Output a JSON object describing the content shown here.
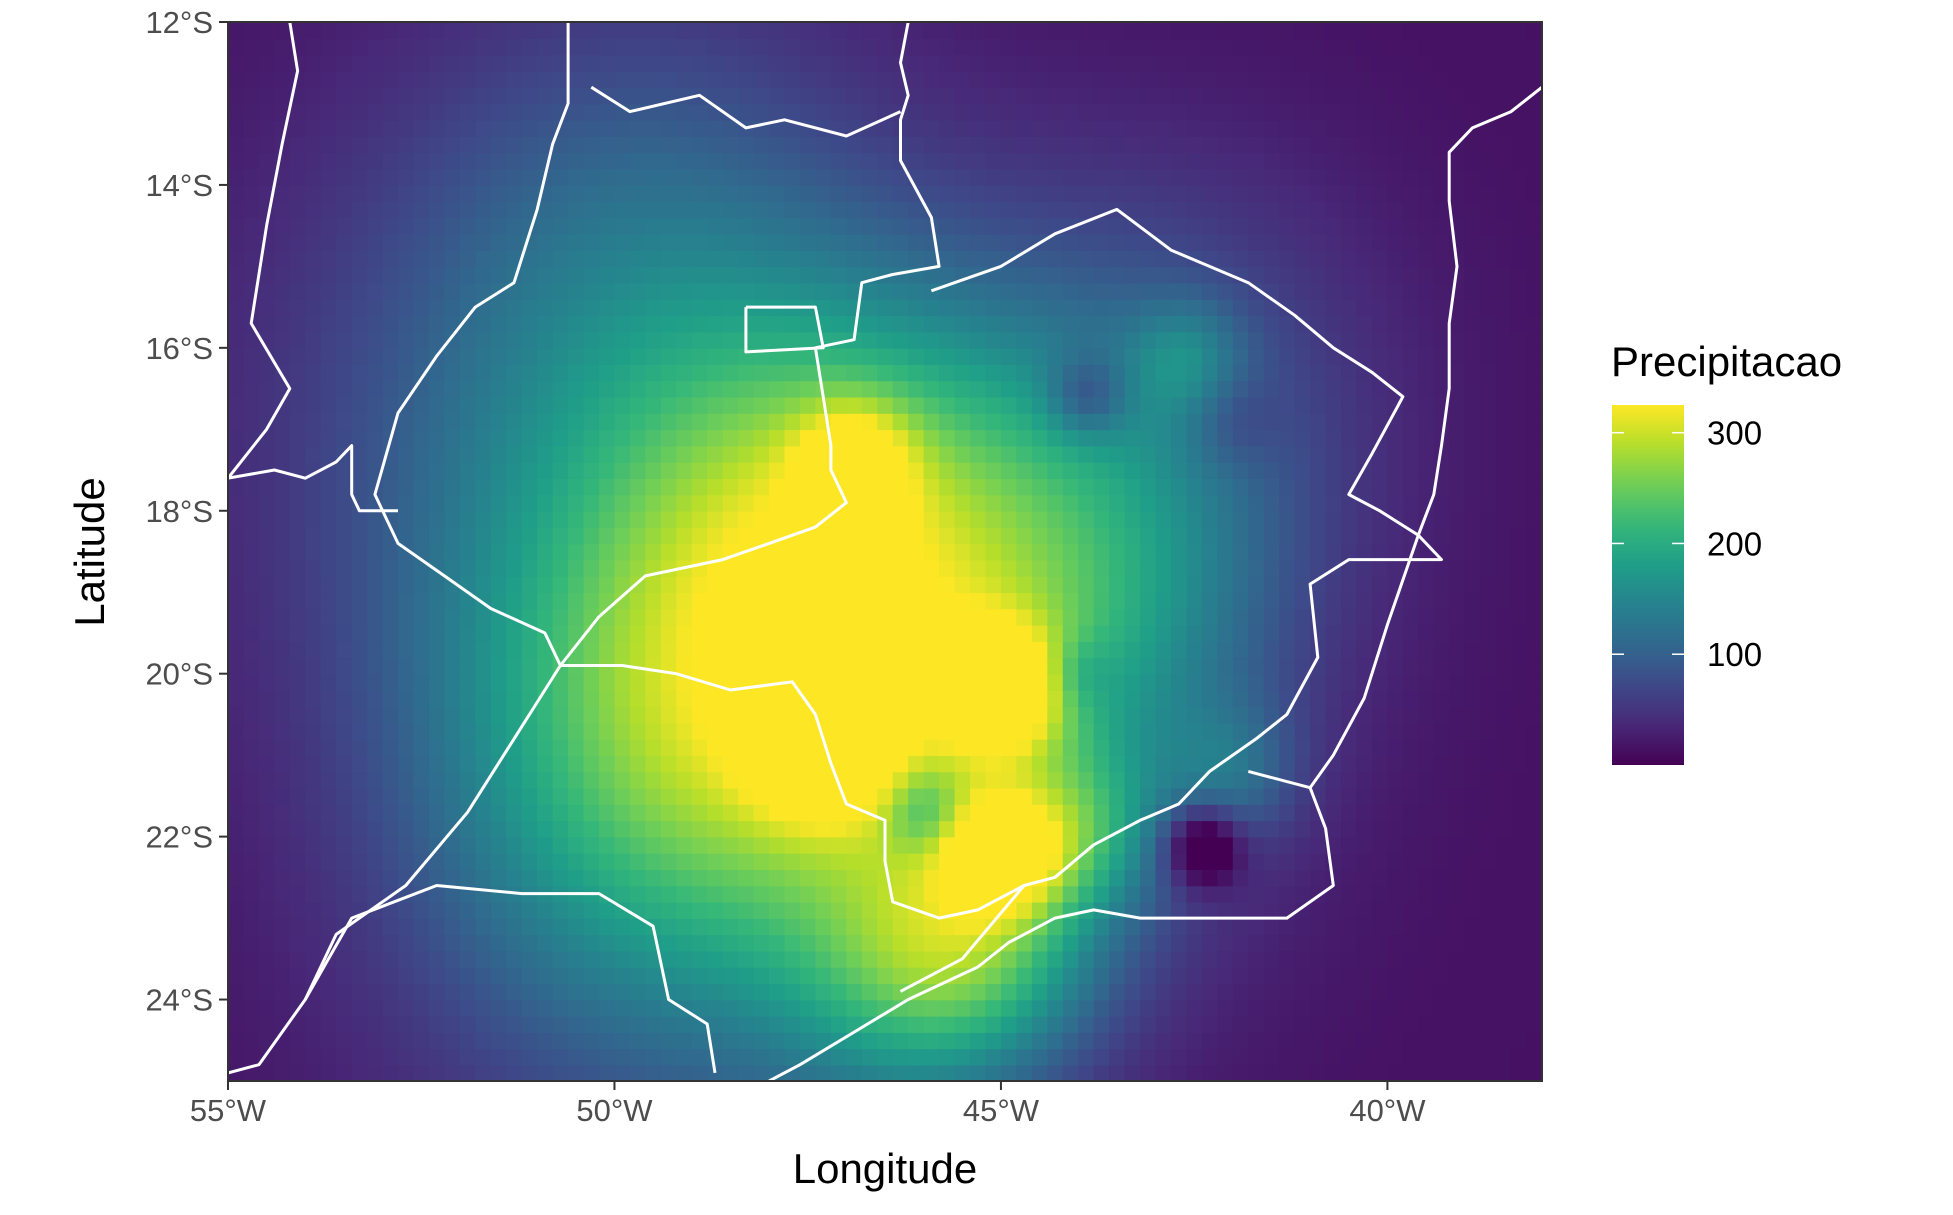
{
  "chart_data": {
    "type": "heatmap",
    "title": "",
    "xlabel": "Longitude",
    "ylabel": "Latitude",
    "x_range": [
      -55,
      -38
    ],
    "y_range": [
      -25,
      -12
    ],
    "x_ticks": [
      {
        "value": -55,
        "label": "55°W"
      },
      {
        "value": -50,
        "label": "50°W"
      },
      {
        "value": -45,
        "label": "45°W"
      },
      {
        "value": -40,
        "label": "40°W"
      }
    ],
    "y_ticks": [
      {
        "value": -12,
        "label": "12°S"
      },
      {
        "value": -14,
        "label": "14°S"
      },
      {
        "value": -16,
        "label": "16°S"
      },
      {
        "value": -18,
        "label": "18°S"
      },
      {
        "value": -20,
        "label": "20°S"
      },
      {
        "value": -22,
        "label": "22°S"
      },
      {
        "value": -24,
        "label": "24°S"
      }
    ],
    "legend": {
      "title": "Precipitacao",
      "placement": "right",
      "min": 0,
      "max": 325,
      "ticks": [
        {
          "value": 100,
          "label": "100"
        },
        {
          "value": 200,
          "label": "200"
        },
        {
          "value": 300,
          "label": "300"
        }
      ],
      "colormap": "viridis"
    },
    "color_stops": [
      "#440154",
      "#482878",
      "#3e4989",
      "#31688e",
      "#26828e",
      "#1f9e89",
      "#35b779",
      "#6ece58",
      "#b5de2b",
      "#fde725"
    ],
    "boundary_color": "#ffffff",
    "field": {
      "base": 15,
      "hotspots": [
        {
          "lon": -45.0,
          "lat": -20.2,
          "value": 180,
          "sigma": 0.55
        },
        {
          "lon": -47.3,
          "lat": -20.8,
          "value": 175,
          "sigma": 0.6
        },
        {
          "lon": -45.0,
          "lat": -22.2,
          "value": 160,
          "sigma": 0.5
        },
        {
          "lon": -44.0,
          "lat": -21.9,
          "value": 90,
          "sigma": 0.7
        },
        {
          "lon": -46.5,
          "lat": -20.0,
          "value": 200,
          "sigma": 2.6
        },
        {
          "lon": -46.9,
          "lat": -17.4,
          "value": 110,
          "sigma": 0.5
        },
        {
          "lon": -47.0,
          "lat": -17.8,
          "value": 90,
          "sigma": 1.8
        },
        {
          "lon": -49.5,
          "lat": -20.8,
          "value": 110,
          "sigma": 2.2
        },
        {
          "lon": -45.2,
          "lat": -23.3,
          "value": 110,
          "sigma": 1.1
        },
        {
          "lon": -46.2,
          "lat": -23.8,
          "value": 80,
          "sigma": 1.2
        },
        {
          "lon": -49.5,
          "lat": -23.5,
          "value": 50,
          "sigma": 2.6
        },
        {
          "lon": -50.5,
          "lat": -17.0,
          "value": 80,
          "sigma": 2.8
        },
        {
          "lon": -49.5,
          "lat": -14.5,
          "value": 50,
          "sigma": 2.2
        },
        {
          "lon": -43.0,
          "lat": -16.5,
          "value": 60,
          "sigma": 2.0
        },
        {
          "lon": -42.6,
          "lat": -16.1,
          "value": 60,
          "sigma": 0.5
        },
        {
          "lon": -42.0,
          "lat": -21.2,
          "value": 60,
          "sigma": 0.6
        },
        {
          "lon": -43.5,
          "lat": -19.0,
          "value": 60,
          "sigma": 1.6
        }
      ],
      "coldspots": [
        {
          "lon": -43.9,
          "lat": -16.6,
          "value": 70,
          "sigma": 0.35
        },
        {
          "lon": -42.4,
          "lat": -22.1,
          "value": 120,
          "sigma": 0.35
        },
        {
          "lon": -46.0,
          "lat": -21.7,
          "value": 60,
          "sigma": 0.35
        },
        {
          "lon": -44.0,
          "lat": -20.0,
          "value": 40,
          "sigma": 0.3
        },
        {
          "lon": -42.0,
          "lat": -16.9,
          "value": 30,
          "sigma": 0.4
        }
      ]
    },
    "borders": [
      {
        "name": "border-1",
        "points": [
          [
            -54.2,
            -12
          ],
          [
            -54.1,
            -12.6
          ],
          [
            -54.3,
            -13.5
          ],
          [
            -54.5,
            -14.5
          ],
          [
            -54.7,
            -15.7
          ],
          [
            -54.2,
            -16.5
          ],
          [
            -54.5,
            -17.0
          ],
          [
            -55,
            -17.6
          ]
        ]
      },
      {
        "name": "border-2",
        "points": [
          [
            -55,
            -17.6
          ],
          [
            -54.4,
            -17.5
          ],
          [
            -54.0,
            -17.6
          ],
          [
            -53.6,
            -17.4
          ],
          [
            -53.4,
            -17.2
          ],
          [
            -53.4,
            -17.8
          ],
          [
            -53.3,
            -18.0
          ],
          [
            -52.8,
            -18.0
          ]
        ]
      },
      {
        "name": "border-3",
        "points": [
          [
            -50.6,
            -12
          ],
          [
            -50.6,
            -13.0
          ],
          [
            -50.8,
            -13.5
          ],
          [
            -51.0,
            -14.3
          ],
          [
            -51.3,
            -15.2
          ],
          [
            -51.8,
            -15.5
          ],
          [
            -52.3,
            -16.1
          ],
          [
            -52.8,
            -16.8
          ],
          [
            -53.1,
            -17.8
          ],
          [
            -52.8,
            -18.4
          ],
          [
            -52.2,
            -18.8
          ],
          [
            -51.6,
            -19.2
          ],
          [
            -50.9,
            -19.5
          ],
          [
            -50.7,
            -19.9
          ],
          [
            -50.9,
            -20.2
          ],
          [
            -51.3,
            -20.8
          ],
          [
            -51.9,
            -21.7
          ],
          [
            -52.7,
            -22.6
          ],
          [
            -53.6,
            -23.2
          ],
          [
            -54.0,
            -24.0
          ],
          [
            -54.6,
            -24.8
          ],
          [
            -55,
            -24.9
          ]
        ]
      },
      {
        "name": "border-4",
        "points": [
          [
            -50.7,
            -19.9
          ],
          [
            -50.2,
            -19.3
          ],
          [
            -49.6,
            -18.8
          ],
          [
            -48.6,
            -18.6
          ],
          [
            -48.0,
            -18.4
          ],
          [
            -47.4,
            -18.2
          ],
          [
            -47.0,
            -17.9
          ],
          [
            -47.2,
            -17.5
          ],
          [
            -47.2,
            -17.2
          ],
          [
            -47.3,
            -16.6
          ],
          [
            -47.4,
            -16.0
          ],
          [
            -46.9,
            -15.9
          ],
          [
            -46.8,
            -15.2
          ],
          [
            -46.4,
            -15.1
          ],
          [
            -45.8,
            -15.0
          ],
          [
            -45.9,
            -14.4
          ],
          [
            -46.3,
            -13.7
          ],
          [
            -46.3,
            -13.2
          ],
          [
            -46.2,
            -12.9
          ],
          [
            -46.3,
            -12.5
          ],
          [
            -46.2,
            -12
          ]
        ]
      },
      {
        "name": "border-5",
        "points": [
          [
            -50.3,
            -12.8
          ],
          [
            -49.8,
            -13.1
          ],
          [
            -48.9,
            -12.9
          ],
          [
            -48.3,
            -13.3
          ],
          [
            -47.8,
            -13.2
          ],
          [
            -47.0,
            -13.4
          ],
          [
            -46.3,
            -13.1
          ]
        ]
      },
      {
        "name": "border-6",
        "points": [
          [
            -48.3,
            -15.5
          ],
          [
            -47.4,
            -15.5
          ],
          [
            -47.3,
            -16.0
          ],
          [
            -48.3,
            -16.05
          ],
          [
            -48.3,
            -15.5
          ]
        ]
      },
      {
        "name": "border-7",
        "points": [
          [
            -45.9,
            -15.3
          ],
          [
            -45.0,
            -15.0
          ],
          [
            -44.3,
            -14.6
          ],
          [
            -43.5,
            -14.3
          ],
          [
            -42.8,
            -14.8
          ],
          [
            -41.8,
            -15.2
          ],
          [
            -41.2,
            -15.6
          ],
          [
            -40.7,
            -16.0
          ],
          [
            -40.2,
            -16.3
          ],
          [
            -39.8,
            -16.6
          ],
          [
            -40.2,
            -17.3
          ],
          [
            -40.5,
            -17.8
          ],
          [
            -40.1,
            -18.0
          ],
          [
            -39.6,
            -18.3
          ],
          [
            -39.3,
            -18.6
          ],
          [
            -40.5,
            -18.6
          ],
          [
            -41.0,
            -18.9
          ],
          [
            -40.9,
            -19.8
          ],
          [
            -41.3,
            -20.5
          ],
          [
            -41.7,
            -20.8
          ],
          [
            -42.3,
            -21.2
          ],
          [
            -42.7,
            -21.6
          ],
          [
            -43.2,
            -21.8
          ],
          [
            -43.8,
            -22.1
          ],
          [
            -44.3,
            -22.5
          ],
          [
            -44.7,
            -22.6
          ],
          [
            -45.3,
            -22.9
          ],
          [
            -45.8,
            -23.0
          ],
          [
            -46.4,
            -22.8
          ],
          [
            -46.5,
            -22.3
          ],
          [
            -46.5,
            -21.8
          ],
          [
            -47.0,
            -21.6
          ],
          [
            -47.2,
            -21.1
          ],
          [
            -47.4,
            -20.5
          ],
          [
            -47.7,
            -20.1
          ],
          [
            -48.5,
            -20.2
          ],
          [
            -49.2,
            -20.0
          ],
          [
            -49.9,
            -19.9
          ],
          [
            -50.7,
            -19.9
          ]
        ]
      },
      {
        "name": "border-8",
        "points": [
          [
            -41.8,
            -21.2
          ],
          [
            -41.0,
            -21.4
          ],
          [
            -40.8,
            -21.9
          ],
          [
            -40.7,
            -22.6
          ],
          [
            -41.3,
            -23.0
          ],
          [
            -42.0,
            -23.0
          ],
          [
            -42.6,
            -23.0
          ],
          [
            -43.2,
            -23.0
          ],
          [
            -43.8,
            -22.9
          ],
          [
            -44.3,
            -23.0
          ],
          [
            -44.9,
            -23.3
          ],
          [
            -45.3,
            -23.6
          ],
          [
            -46.2,
            -24.0
          ],
          [
            -46.9,
            -24.4
          ],
          [
            -47.6,
            -24.8
          ],
          [
            -48.0,
            -25
          ]
        ]
      },
      {
        "name": "border-9",
        "points": [
          [
            -44.7,
            -22.6
          ],
          [
            -45.5,
            -23.5
          ],
          [
            -46.3,
            -23.9
          ]
        ]
      },
      {
        "name": "border-10",
        "points": [
          [
            -54.0,
            -24.0
          ],
          [
            -53.4,
            -23.0
          ],
          [
            -52.3,
            -22.6
          ],
          [
            -51.2,
            -22.7
          ],
          [
            -50.2,
            -22.7
          ],
          [
            -49.5,
            -23.1
          ],
          [
            -49.3,
            -24.0
          ],
          [
            -48.8,
            -24.3
          ],
          [
            -48.7,
            -24.9
          ]
        ]
      },
      {
        "name": "border-11",
        "points": [
          [
            -38.0,
            -12.8
          ],
          [
            -38.4,
            -13.1
          ],
          [
            -38.9,
            -13.3
          ],
          [
            -39.2,
            -13.6
          ],
          [
            -39.2,
            -14.2
          ],
          [
            -39.1,
            -15.0
          ],
          [
            -39.2,
            -15.7
          ],
          [
            -39.2,
            -16.5
          ],
          [
            -39.3,
            -17.2
          ],
          [
            -39.4,
            -17.8
          ],
          [
            -39.6,
            -18.3
          ],
          [
            -40.0,
            -19.4
          ],
          [
            -40.3,
            -20.3
          ],
          [
            -40.7,
            -21.0
          ],
          [
            -41.0,
            -21.4
          ]
        ]
      }
    ]
  }
}
